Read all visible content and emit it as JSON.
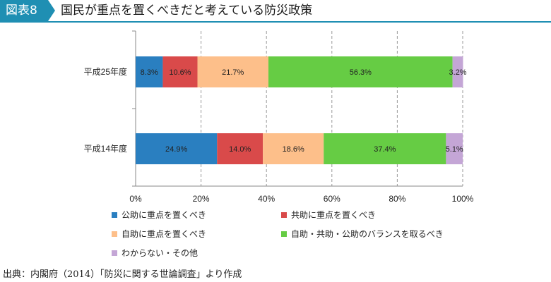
{
  "figure": {
    "badge": "図表8",
    "title": "国民が重点を置くべきだと考えている防災政策",
    "source": "出典：内閣府（2014）「防災に関する世論調査」より作成"
  },
  "chart_data": {
    "type": "bar",
    "orientation": "horizontal",
    "stacked": "percent",
    "categories": [
      "平成25年度",
      "平成14年度"
    ],
    "series": [
      {
        "name": "公助に重点を置くべき",
        "color": "#2a7fc0",
        "values": [
          8.3,
          24.9
        ],
        "labels": [
          "8.3%",
          "24.9%"
        ]
      },
      {
        "name": "共助に重点を置くべき",
        "color": "#d94a4a",
        "values": [
          10.6,
          14.0
        ],
        "labels": [
          "10.6%",
          "14.0%"
        ]
      },
      {
        "name": "自助に重点を置くべき",
        "color": "#fdbf8a",
        "values": [
          21.7,
          18.6
        ],
        "labels": [
          "21.7%",
          "18.6%"
        ]
      },
      {
        "name": "自助・共助・公助のバランスを取るべき",
        "color": "#66cc44",
        "values": [
          56.3,
          37.4
        ],
        "labels": [
          "56.3%",
          "37.4%"
        ]
      },
      {
        "name": "わからない・その他",
        "color": "#c4a6d6",
        "values": [
          3.2,
          5.1
        ],
        "labels": [
          "3.2%",
          "5.1%"
        ]
      }
    ],
    "xaxis": {
      "min": 0,
      "max": 100,
      "ticks": [
        "0%",
        "20%",
        "40%",
        "60%",
        "80%",
        "100%"
      ]
    },
    "grid": "vertical dashed",
    "legend_position": "bottom"
  }
}
